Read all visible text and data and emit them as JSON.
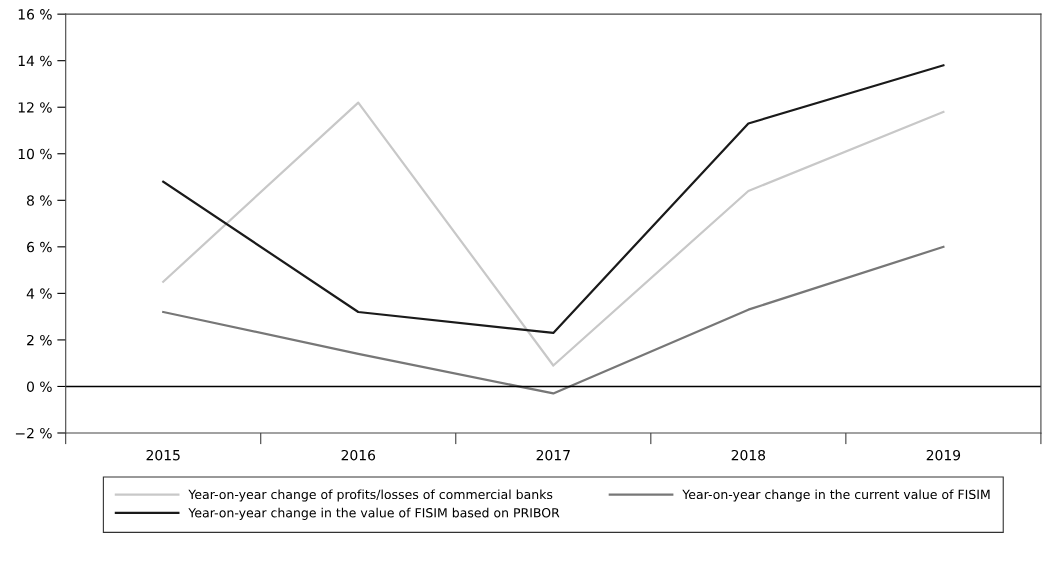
{
  "chart_data": {
    "type": "line",
    "categories": [
      "2015",
      "2016",
      "2017",
      "2018",
      "2019"
    ],
    "series": [
      {
        "name": "Year-on-year change of profits/losses of commercial banks",
        "color": "#c8c8c8",
        "values": [
          4.5,
          12.2,
          0.9,
          8.4,
          11.8
        ]
      },
      {
        "name": "Year-on-year change in the current value of FISIM",
        "color": "#777777",
        "values": [
          3.2,
          1.4,
          -0.3,
          3.3,
          6.0
        ]
      },
      {
        "name": "Year-on-year change in the value of FISIM based on PRIBOR",
        "color": "#1a1a1a",
        "values": [
          8.8,
          3.2,
          2.3,
          11.3,
          13.8
        ]
      }
    ],
    "ylim": [
      -2,
      16
    ],
    "yticks": [
      {
        "value": -2,
        "label": "−2 %"
      },
      {
        "value": 0,
        "label": "0 %"
      },
      {
        "value": 2,
        "label": "2 %"
      },
      {
        "value": 4,
        "label": "4 %"
      },
      {
        "value": 6,
        "label": "6 %"
      },
      {
        "value": 8,
        "label": "8 %"
      },
      {
        "value": 10,
        "label": "10 %"
      },
      {
        "value": 12,
        "label": "12 %"
      },
      {
        "value": 14,
        "label": "14 %"
      },
      {
        "value": 16,
        "label": "16 %"
      }
    ],
    "ref_lines": [
      {
        "axis": "y",
        "value": 0,
        "label": null,
        "color": "#000000"
      }
    ],
    "grid": false,
    "legend": "bottom",
    "marker": "none",
    "line_style": "solid"
  }
}
